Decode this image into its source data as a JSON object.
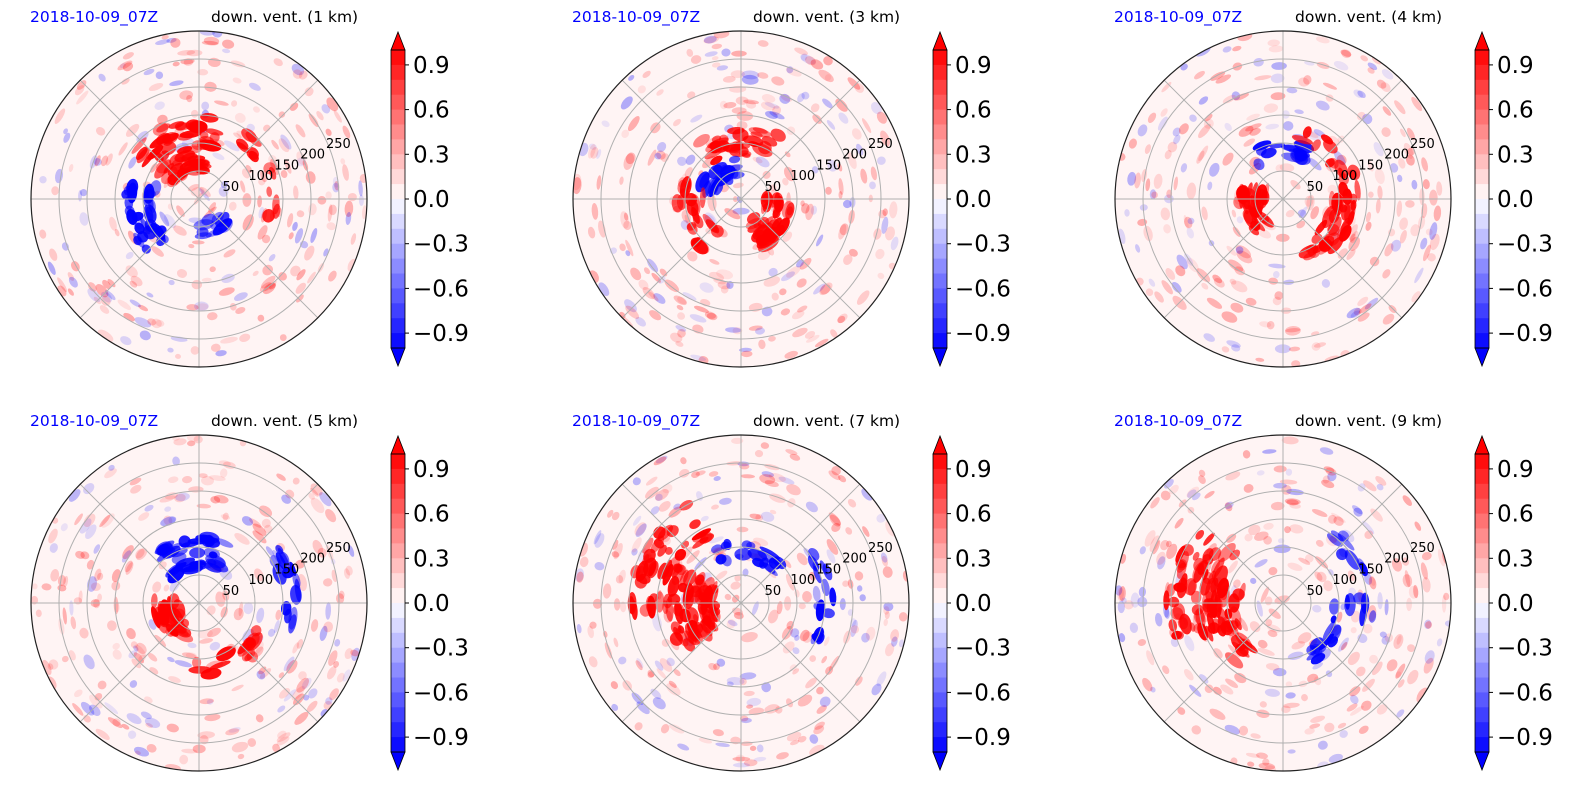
{
  "colors": {
    "positive": "#ff0000",
    "negative": "#0000ff",
    "zero": "#ffffff",
    "grid": "#b0b0b0",
    "date_text": "#0000ff"
  },
  "chart_data": [
    {
      "type": "heatmap",
      "projection": "polar",
      "date": "2018-10-09_07Z",
      "title": "down. vent. (1 km)",
      "radial_ticks": [
        "50",
        "100",
        "150",
        "200",
        "250"
      ],
      "colorbar": {
        "ticks": [
          "0.9",
          "0.6",
          "0.3",
          "0.0",
          "−0.3",
          "−0.6",
          "−0.9"
        ],
        "range": [
          -1.0,
          1.0
        ],
        "extend": "both"
      }
    },
    {
      "type": "heatmap",
      "projection": "polar",
      "date": "2018-10-09_07Z",
      "title": "down. vent. (3 km)",
      "radial_ticks": [
        "50",
        "100",
        "150",
        "200",
        "250"
      ],
      "colorbar": {
        "ticks": [
          "0.9",
          "0.6",
          "0.3",
          "0.0",
          "−0.3",
          "−0.6",
          "−0.9"
        ],
        "range": [
          -1.0,
          1.0
        ],
        "extend": "both"
      }
    },
    {
      "type": "heatmap",
      "projection": "polar",
      "date": "2018-10-09_07Z",
      "title": "down. vent. (4 km)",
      "radial_ticks": [
        "50",
        "100",
        "150",
        "200",
        "250"
      ],
      "colorbar": {
        "ticks": [
          "0.9",
          "0.6",
          "0.3",
          "0.0",
          "−0.3",
          "−0.6",
          "−0.9"
        ],
        "range": [
          -1.0,
          1.0
        ],
        "extend": "both"
      }
    },
    {
      "type": "heatmap",
      "projection": "polar",
      "date": "2018-10-09_07Z",
      "title": "down. vent. (5 km)",
      "radial_ticks": [
        "50",
        "100",
        "150",
        "200",
        "250"
      ],
      "colorbar": {
        "ticks": [
          "0.9",
          "0.6",
          "0.3",
          "0.0",
          "−0.3",
          "−0.6",
          "−0.9"
        ],
        "range": [
          -1.0,
          1.0
        ],
        "extend": "both"
      }
    },
    {
      "type": "heatmap",
      "projection": "polar",
      "date": "2018-10-09_07Z",
      "title": "down. vent. (7 km)",
      "radial_ticks": [
        "50",
        "100",
        "150",
        "200",
        "250"
      ],
      "colorbar": {
        "ticks": [
          "0.9",
          "0.6",
          "0.3",
          "0.0",
          "−0.3",
          "−0.6",
          "−0.9"
        ],
        "range": [
          -1.0,
          1.0
        ],
        "extend": "both"
      }
    },
    {
      "type": "heatmap",
      "projection": "polar",
      "date": "2018-10-09_07Z",
      "title": "down. vent. (9 km)",
      "radial_ticks": [
        "50",
        "100",
        "150",
        "200",
        "250"
      ],
      "colorbar": {
        "ticks": [
          "0.9",
          "0.6",
          "0.3",
          "0.0",
          "−0.3",
          "−0.6",
          "−0.9"
        ],
        "range": [
          -1.0,
          1.0
        ],
        "extend": "both"
      }
    }
  ]
}
